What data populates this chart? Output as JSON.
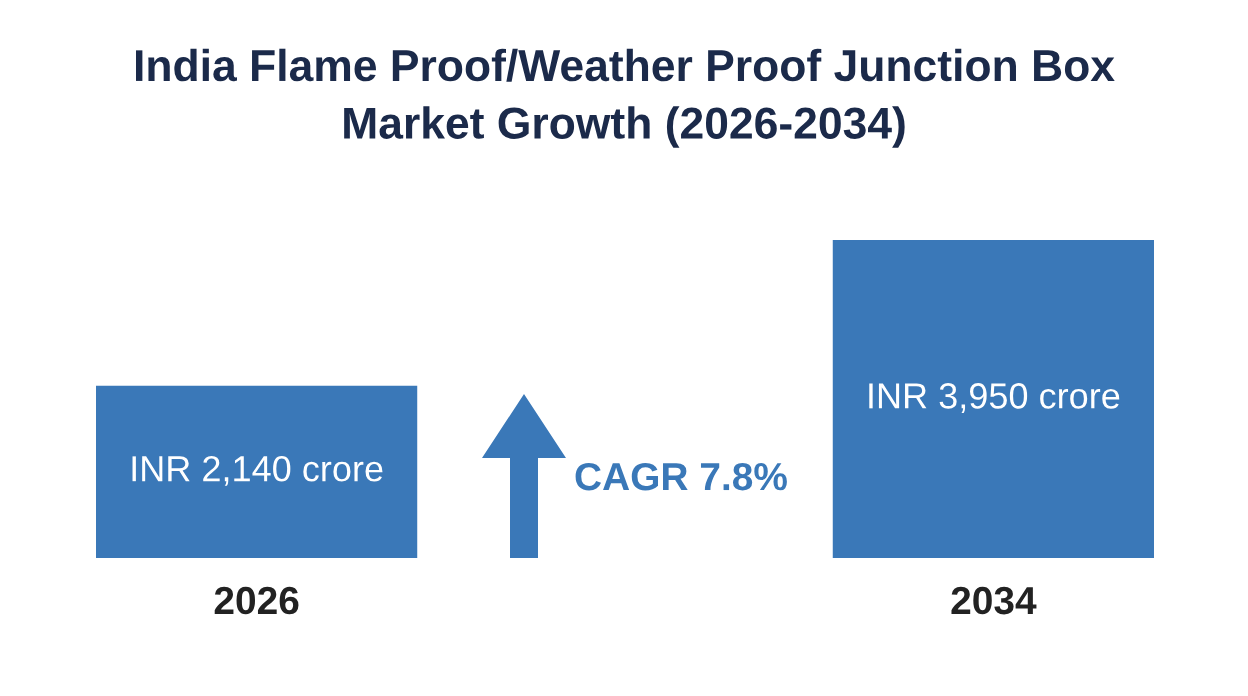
{
  "chart_data": {
    "type": "bar",
    "title": "India Flame Proof/Weather Proof Junction Box\nMarket Growth (2026-2034)",
    "categories": [
      "2026",
      "2034"
    ],
    "values": [
      2140,
      3950
    ],
    "value_labels": [
      "INR 2,140 crore",
      "INR 3,950 crore"
    ],
    "color": "#3a78b8",
    "annotations": [
      "CAGR 7.8%"
    ],
    "grid": false,
    "legend": false
  }
}
